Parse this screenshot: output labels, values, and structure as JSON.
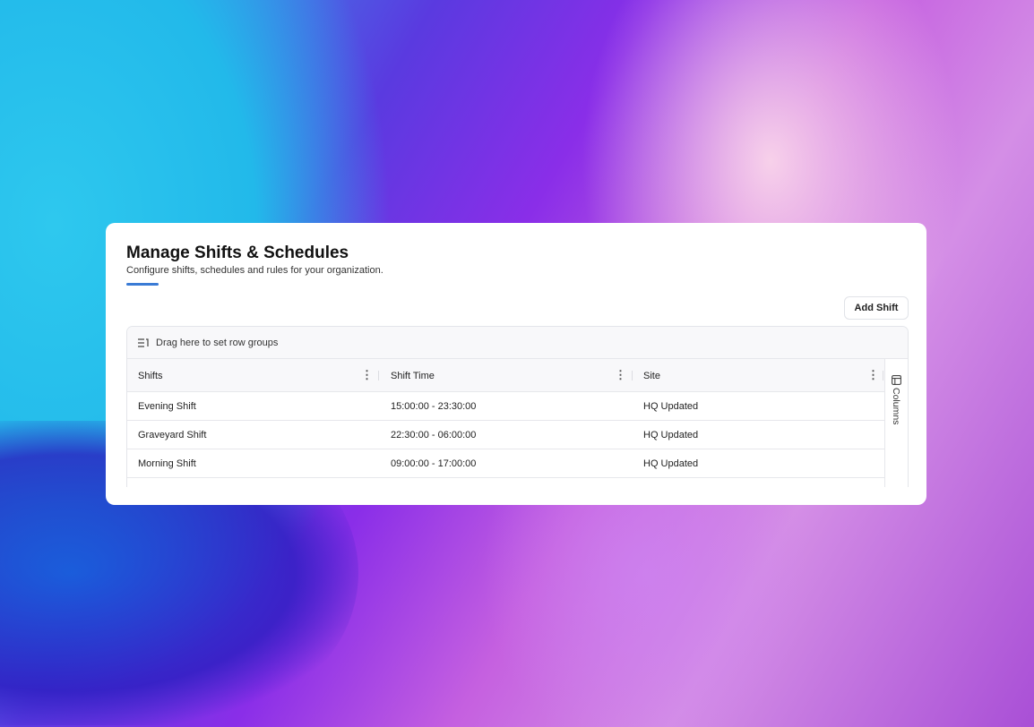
{
  "page": {
    "title": "Manage Shifts & Schedules",
    "subtitle": "Configure shifts, schedules and rules for your organization.",
    "accent": "#3a7bd5"
  },
  "toolbar": {
    "add_label": "Add Shift"
  },
  "grid": {
    "group_hint": "Drag here to set row groups",
    "columns": [
      {
        "label": "Shifts"
      },
      {
        "label": "Shift Time"
      },
      {
        "label": "Site"
      }
    ],
    "rows": [
      {
        "shift": "Evening Shift",
        "time": "15:00:00 - 23:30:00",
        "site": "HQ Updated"
      },
      {
        "shift": "Graveyard Shift",
        "time": "22:30:00 - 06:00:00",
        "site": "HQ Updated"
      },
      {
        "shift": "Morning Shift",
        "time": "09:00:00 - 17:00:00",
        "site": "HQ Updated"
      }
    ],
    "side_panel": "Columns"
  }
}
